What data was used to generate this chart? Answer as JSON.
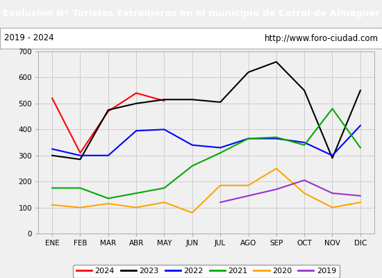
{
  "title": "Evolucion Nº Turistas Extranjeros en el municipio de Corral de Almaguer",
  "subtitle_left": "2019 - 2024",
  "subtitle_right": "http://www.foro-ciudad.com",
  "title_bg_color": "#4472c4",
  "title_text_color": "#ffffff",
  "subtitle_bg_color": "#ffffff",
  "months": [
    "ENE",
    "FEB",
    "MAR",
    "ABR",
    "MAY",
    "JUN",
    "JUL",
    "AGO",
    "SEP",
    "OCT",
    "NOV",
    "DIC"
  ],
  "ylim": [
    0,
    700
  ],
  "yticks": [
    0,
    100,
    200,
    300,
    400,
    500,
    600,
    700
  ],
  "series": {
    "2024": {
      "color": "#ff0000",
      "data": [
        520,
        310,
        470,
        540,
        510,
        null,
        null,
        null,
        null,
        null,
        null,
        null
      ]
    },
    "2023": {
      "color": "#000000",
      "data": [
        300,
        285,
        475,
        500,
        515,
        515,
        505,
        620,
        660,
        550,
        290,
        550
      ]
    },
    "2022": {
      "color": "#0000ff",
      "data": [
        325,
        300,
        300,
        395,
        400,
        340,
        330,
        365,
        365,
        350,
        300,
        415
      ]
    },
    "2021": {
      "color": "#00aa00",
      "data": [
        175,
        175,
        135,
        155,
        175,
        260,
        310,
        365,
        370,
        340,
        480,
        330
      ]
    },
    "2020": {
      "color": "#ffa500",
      "data": [
        110,
        100,
        115,
        100,
        120,
        80,
        185,
        185,
        250,
        155,
        100,
        120
      ]
    },
    "2019": {
      "color": "#9932cc",
      "data": [
        null,
        null,
        null,
        null,
        null,
        null,
        120,
        145,
        170,
        205,
        155,
        145
      ]
    }
  },
  "legend_order": [
    "2024",
    "2023",
    "2022",
    "2021",
    "2020",
    "2019"
  ],
  "grid_color": "#cccccc",
  "plot_bg_color": "#f0f0f0",
  "fig_bg_color": "#f0f0f0"
}
